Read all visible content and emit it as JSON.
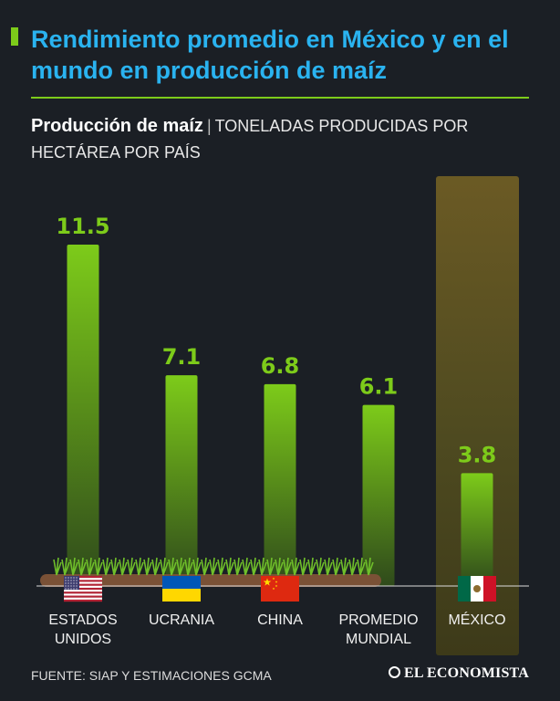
{
  "header": {
    "title": "Rendimiento promedio en México y en el mundo en producción de maíz",
    "subtitle_bold": "Producción de maíz",
    "subtitle_separator": "|",
    "subtitle_rest": "TONELADAS PRODUCIDAS POR HECTÁREA POR PAÍS"
  },
  "chart_data": {
    "type": "bar",
    "title": "Producción de maíz",
    "ylabel": "TONELADAS PRODUCIDAS POR HECTÁREA POR PAÍS",
    "categories": [
      "ESTADOS UNIDOS",
      "UCRANIA",
      "CHINA",
      "PROMEDIO MUNDIAL",
      "MÉXICO"
    ],
    "values": [
      11.5,
      7.1,
      6.8,
      6.1,
      3.8
    ],
    "value_labels": [
      "11.5",
      "7.1",
      "6.8",
      "6.1",
      "3.8"
    ],
    "flags": [
      "usa-flag-icon",
      "ukraine-flag-icon",
      "china-flag-icon",
      null,
      "mexico-flag-icon"
    ],
    "highlighted_category": "MÉXICO",
    "ylim": [
      0,
      12
    ],
    "grid": false,
    "colors": {
      "bar_top": "#7dcb1a",
      "bar_bottom": "#2f4a1b",
      "value_label": "#7dcb1a",
      "highlight_column": "#5a4f22"
    }
  },
  "footer": {
    "source": "FUENTE: SIAP Y ESTIMACIONES GCMA",
    "brand": "EL ECONOMISTA"
  },
  "colors": {
    "background": "#1b1f25",
    "title": "#2ab3f0",
    "accent": "#7dcb1a"
  }
}
